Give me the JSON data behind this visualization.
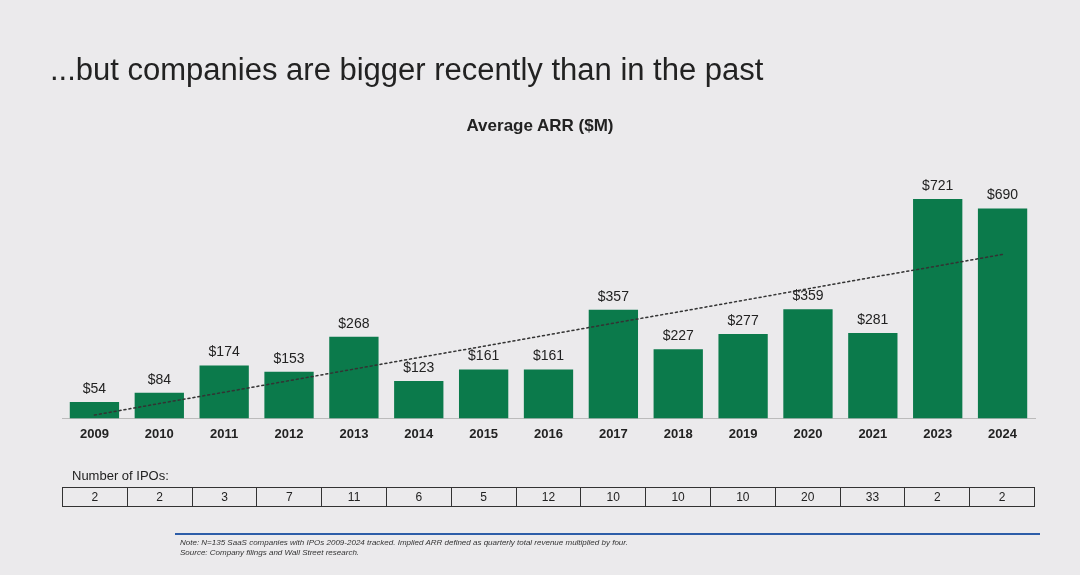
{
  "chart_data": {
    "type": "bar",
    "title": "...but companies are bigger recently than in the past",
    "subtitle": "Average ARR ($M)",
    "categories": [
      "2009",
      "2010",
      "2011",
      "2012",
      "2013",
      "2014",
      "2015",
      "2016",
      "2017",
      "2018",
      "2019",
      "2020",
      "2021",
      "2023",
      "2024"
    ],
    "series": [
      {
        "color": "#0b7a4b",
        "values": [
          54,
          84,
          174,
          153,
          268,
          123,
          161,
          161,
          357,
          227,
          277,
          359,
          281,
          721,
          690
        ],
        "value_labels": [
          "$54",
          "$84",
          "$174",
          "$153",
          "$268",
          "$123",
          "$161",
          "$161",
          "$357",
          "$227",
          "$277",
          "$359",
          "$281",
          "$721",
          "$690"
        ]
      },
      {
        "type": "line",
        "color": "#333333",
        "line_style": "dotted",
        "marker": "none",
        "values": [
          11,
          49,
          86,
          124,
          162,
          200,
          237,
          275,
          313,
          350,
          388,
          426,
          464,
          501,
          539
        ]
      }
    ],
    "grid": false,
    "legend": false,
    "tick_labels": "x",
    "annotations": [
      "Number of IPOs:",
      "2",
      "2",
      "3",
      "7",
      "11",
      "6",
      "5",
      "12",
      "10",
      "10",
      "10",
      "20",
      "33",
      "2",
      "2",
      "Note: N=135 SaaS companies with IPOs 2009-2024 tracked. Implied ARR defined as quarterly total revenue multiplied by four.",
      "Source: Company filings and Wall Street research."
    ]
  }
}
